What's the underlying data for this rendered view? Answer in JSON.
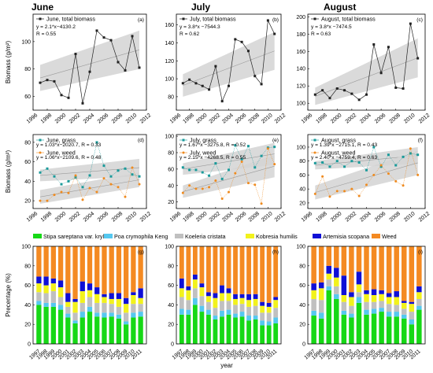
{
  "figure": {
    "column_titles": [
      "June",
      "July",
      "August"
    ],
    "xlabel": "year"
  },
  "colors": {
    "total": "#222222",
    "grass": "#1a9a9a",
    "weed": "#ef8a1e",
    "band": "#d3d3d3"
  },
  "chart_data": [
    {
      "type": "line",
      "row": 0,
      "col": 0,
      "panel_label": "(a)",
      "ylabel": "Biomass (g/m²)",
      "xlim": [
        1996,
        2012
      ],
      "ylim": [
        50,
        120
      ],
      "xticks": [
        1996,
        1998,
        2000,
        2002,
        2004,
        2006,
        2008,
        2010,
        2012
      ],
      "yticks": [
        60,
        80,
        100
      ],
      "x": [
        1997,
        1998,
        1999,
        2000,
        2001,
        2002,
        2003,
        2004,
        2005,
        2006,
        2007,
        2008,
        2009,
        2010,
        2011
      ],
      "series": [
        {
          "name": "June, total biomass",
          "kind": "total",
          "values": [
            70,
            72,
            71,
            61,
            59,
            91,
            55,
            78,
            108,
            103,
            101,
            85,
            79,
            104,
            81
          ]
        }
      ],
      "fit_band": {
        "x": [
          1997,
          2011
        ],
        "lower": [
          64,
          80
        ],
        "upper": [
          83,
          108
        ]
      },
      "annotations": [
        "y = 2.1*x−4130.2",
        "R = 0.55"
      ]
    },
    {
      "type": "line",
      "row": 0,
      "col": 1,
      "panel_label": "(b)",
      "ylabel": "",
      "xlim": [
        1996,
        2012
      ],
      "ylim": [
        65,
        172
      ],
      "xticks": [
        1996,
        1998,
        2000,
        2002,
        2004,
        2006,
        2008,
        2010,
        2012
      ],
      "yticks": [
        80,
        100,
        120,
        140,
        160
      ],
      "x": [
        1997,
        1998,
        1999,
        2000,
        2001,
        2002,
        2003,
        2004,
        2005,
        2006,
        2007,
        2008,
        2009,
        2010,
        2011
      ],
      "series": [
        {
          "name": "July, total biomass",
          "kind": "total",
          "values": [
            95,
            99,
            95,
            92,
            88,
            114,
            75,
            92,
            144,
            141,
            131,
            103,
            94,
            165,
            150
          ]
        }
      ],
      "fit_band": {
        "x": [
          1997,
          2011
        ],
        "lower": [
          80,
          110
        ],
        "upper": [
          105,
          152
        ]
      },
      "annotations": [
        "y = 3.8*x −7544.3",
        "R = 0.62"
      ]
    },
    {
      "type": "line",
      "row": 0,
      "col": 2,
      "panel_label": "(c)",
      "ylabel": "",
      "xlim": [
        1996,
        2012
      ],
      "ylim": [
        92,
        203
      ],
      "xticks": [
        1996,
        1998,
        2000,
        2002,
        2004,
        2006,
        2008,
        2010,
        2012
      ],
      "yticks": [
        100,
        120,
        140,
        160,
        180,
        200
      ],
      "x": [
        1997,
        1998,
        1999,
        2000,
        2001,
        2002,
        2003,
        2004,
        2005,
        2006,
        2007,
        2008,
        2009,
        2010,
        2011
      ],
      "series": [
        {
          "name": "August, total biomass",
          "kind": "total",
          "values": [
            110,
            115,
            106,
            117,
            115,
            111,
            104,
            110,
            168,
            135,
            165,
            118,
            117,
            192,
            152
          ]
        }
      ],
      "fit_band": {
        "x": [
          1997,
          2011
        ],
        "lower": [
          98,
          130
        ],
        "upper": [
          118,
          175
        ]
      },
      "annotations": [
        "y = 3.8*x −7474.5",
        "R = 0.63"
      ]
    },
    {
      "type": "line",
      "row": 1,
      "col": 0,
      "panel_label": "(d)",
      "ylabel": "Biomass (g/m²)",
      "xlim": [
        1996,
        2012
      ],
      "ylim": [
        12,
        88
      ],
      "xticks": [
        1996,
        1998,
        2000,
        2002,
        2004,
        2006,
        2008,
        2010,
        2012
      ],
      "yticks": [
        20,
        40,
        60,
        80
      ],
      "x": [
        1997,
        1998,
        1999,
        2000,
        2001,
        2002,
        2003,
        2004,
        2005,
        2006,
        2007,
        2008,
        2009,
        2010,
        2011
      ],
      "series": [
        {
          "name": "June, grass",
          "kind": "grass",
          "values": [
            49,
            53,
            45,
            37,
            40,
            44,
            34,
            46,
            80,
            56,
            45,
            51,
            53,
            47,
            45
          ]
        },
        {
          "name": "June, weed",
          "kind": "weed",
          "values": [
            20,
            20,
            26,
            29,
            28,
            46,
            21,
            33,
            29,
            43,
            37,
            34,
            24,
            54,
            37
          ]
        }
      ],
      "fit_bands": [
        {
          "x": [
            1997,
            2011
          ],
          "lower": [
            40,
            45
          ],
          "upper": [
            52,
            63
          ]
        },
        {
          "x": [
            1997,
            2011
          ],
          "lower": [
            17,
            34
          ],
          "upper": [
            31,
            49
          ]
        }
      ],
      "annotations": [
        "y = 1.03*x−2020.7, R = 0.33",
        "y = 1.06*x−2109.6, R = 0.48"
      ]
    },
    {
      "type": "line",
      "row": 1,
      "col": 1,
      "panel_label": "(e)",
      "ylabel": "",
      "xlim": [
        1996,
        2012
      ],
      "ylim": [
        12,
        102
      ],
      "xticks": [
        1996,
        1998,
        2000,
        2002,
        2004,
        2006,
        2008,
        2010,
        2012
      ],
      "yticks": [
        20,
        40,
        60,
        80,
        100
      ],
      "x": [
        1997,
        1998,
        1999,
        2000,
        2001,
        2002,
        2003,
        2004,
        2005,
        2006,
        2007,
        2008,
        2009,
        2010,
        2011
      ],
      "series": [
        {
          "name": "July, grass",
          "kind": "grass",
          "values": [
            62,
            59,
            59,
            56,
            52,
            67,
            48,
            59,
            89,
            72,
            88,
            62,
            76,
            86,
            87
          ]
        },
        {
          "name": "July, weed",
          "kind": "weed",
          "values": [
            31,
            40,
            36,
            36,
            38,
            46,
            24,
            32,
            55,
            69,
            43,
            41,
            18,
            85,
            66
          ]
        }
      ],
      "fit_bands": [
        {
          "x": [
            1997,
            2011
          ],
          "lower": [
            53,
            65
          ],
          "upper": [
            67,
            92
          ]
        },
        {
          "x": [
            1997,
            2011
          ],
          "lower": [
            25,
            50
          ],
          "upper": [
            40,
            77
          ]
        }
      ],
      "annotations": [
        "y = 1.67*x −3275.8, R = 0.52",
        "y = 2.15*x −4268.5, R = 0.55"
      ]
    },
    {
      "type": "line",
      "row": 1,
      "col": 2,
      "panel_label": "(f)",
      "ylabel": "",
      "xlim": [
        1996,
        2012
      ],
      "ylim": [
        12,
        118
      ],
      "xticks": [
        1996,
        1998,
        2000,
        2002,
        2004,
        2006,
        2008,
        2010,
        2012
      ],
      "yticks": [
        20,
        40,
        60,
        80,
        100
      ],
      "x": [
        1997,
        1998,
        1999,
        2000,
        2001,
        2002,
        2003,
        2004,
        2005,
        2006,
        2007,
        2008,
        2009,
        2010,
        2011
      ],
      "series": [
        {
          "name": "August, grass",
          "kind": "grass",
          "values": [
            77,
            78,
            72,
            80,
            72,
            80,
            78,
            67,
            100,
            72,
            89,
            74,
            86,
            91,
            89
          ]
        },
        {
          "name": "August, weed",
          "kind": "weed",
          "values": [
            33,
            58,
            29,
            37,
            37,
            40,
            30,
            46,
            60,
            74,
            62,
            51,
            45,
            98,
            60
          ]
        }
      ],
      "fit_bands": [
        {
          "x": [
            1997,
            2011
          ],
          "lower": [
            68,
            76
          ],
          "upper": [
            80,
            100
          ]
        },
        {
          "x": [
            1997,
            2011
          ],
          "lower": [
            25,
            60
          ],
          "upper": [
            45,
            95
          ]
        }
      ],
      "annotations": [
        "y = 1.39*x −2715.1, R = 0.43",
        "y = 2.40*x −4759.4, R = 0.63"
      ]
    },
    {
      "type": "bar",
      "stacked": true,
      "row": 2,
      "col": 0,
      "panel_label": "(g)",
      "ylabel": "Precentage (%)",
      "ylim": [
        0,
        100
      ],
      "yticks": [
        0,
        20,
        40,
        60,
        80,
        100
      ],
      "categories": [
        "1997",
        "1998",
        "1999",
        "2000",
        "2001",
        "2002",
        "2003",
        "2004",
        "2005",
        "2006",
        "2007",
        "2008",
        "2009",
        "2010",
        "2011"
      ],
      "series": [
        {
          "name": "Stipa sareptana var. krylovii",
          "color": "#16d816",
          "values": [
            40,
            38,
            38,
            35,
            27,
            21,
            27,
            33,
            28,
            27,
            28,
            26,
            20,
            27,
            28
          ]
        },
        {
          "name": "Poa crymophila Keng",
          "color": "#55c8f0",
          "values": [
            4,
            4,
            4,
            5,
            4,
            3,
            6,
            5,
            4,
            5,
            4,
            4,
            3,
            5,
            5
          ]
        },
        {
          "name": "Koeleria cristata",
          "color": "#c0c0c0",
          "values": [
            9,
            10,
            12,
            8,
            7,
            8,
            9,
            10,
            10,
            10,
            9,
            8,
            9,
            9,
            8
          ]
        },
        {
          "name": "Kobresia humilis",
          "color": "#f2f21c",
          "values": [
            9,
            8,
            8,
            10,
            5,
            11,
            12,
            7,
            9,
            6,
            5,
            8,
            9,
            9,
            6
          ]
        },
        {
          "name": "Artemisia scopana",
          "color": "#0f0fd6",
          "values": [
            7,
            9,
            5,
            7,
            9,
            3,
            10,
            7,
            7,
            3,
            6,
            6,
            6,
            3,
            10
          ]
        },
        {
          "name": "Weed",
          "color": "#f48a22",
          "values": [
            31,
            31,
            33,
            35,
            48,
            54,
            36,
            38,
            42,
            49,
            48,
            48,
            53,
            47,
            43
          ]
        }
      ]
    },
    {
      "type": "bar",
      "stacked": true,
      "row": 2,
      "col": 1,
      "panel_label": "(h)",
      "ylabel": "",
      "ylim": [
        0,
        100
      ],
      "yticks": [
        0,
        20,
        40,
        60,
        80,
        100
      ],
      "categories": [
        "1997",
        "1998",
        "1999",
        "2000",
        "2001",
        "2002",
        "2003",
        "2004",
        "2005",
        "2006",
        "2007",
        "2008",
        "2009",
        "2010",
        "2011"
      ],
      "series": [
        {
          "name": "Stipa sareptana var. krylovii",
          "color": "#16d816",
          "values": [
            30,
            30,
            40,
            33,
            30,
            25,
            28,
            30,
            27,
            28,
            24,
            25,
            19,
            19,
            21
          ]
        },
        {
          "name": "Poa crymophila Keng",
          "color": "#55c8f0",
          "values": [
            6,
            5,
            7,
            6,
            5,
            4,
            6,
            5,
            4,
            5,
            5,
            4,
            5,
            4,
            6
          ]
        },
        {
          "name": "Koeleria cristata",
          "color": "#c0c0c0",
          "values": [
            12,
            10,
            10,
            10,
            8,
            8,
            10,
            9,
            9,
            8,
            9,
            10,
            8,
            9,
            10
          ]
        },
        {
          "name": "Kobresia humilis",
          "color": "#f2f21c",
          "values": [
            9,
            10,
            9,
            9,
            6,
            10,
            8,
            8,
            6,
            6,
            7,
            7,
            7,
            6,
            8
          ]
        },
        {
          "name": "Artemisia scopana",
          "color": "#0f0fd6",
          "values": [
            10,
            4,
            5,
            4,
            4,
            5,
            8,
            5,
            5,
            4,
            6,
            5,
            4,
            4,
            3
          ]
        },
        {
          "name": "Weed",
          "color": "#f48a22",
          "values": [
            33,
            41,
            29,
            38,
            47,
            48,
            40,
            43,
            49,
            49,
            49,
            49,
            57,
            58,
            52
          ]
        }
      ]
    },
    {
      "type": "bar",
      "stacked": true,
      "row": 2,
      "col": 2,
      "panel_label": "(i)",
      "ylabel": "",
      "ylim": [
        0,
        100
      ],
      "yticks": [
        0,
        20,
        40,
        60,
        80,
        100
      ],
      "categories": [
        "1997",
        "1998",
        "1999",
        "2000",
        "2001",
        "2002",
        "2003",
        "2004",
        "2005",
        "2006",
        "2007",
        "2008",
        "2009",
        "2010",
        "2011"
      ],
      "series": [
        {
          "name": "Stipa sareptana var. krylovii",
          "color": "#16d816",
          "values": [
            29,
            26,
            55,
            46,
            30,
            27,
            42,
            30,
            31,
            33,
            28,
            28,
            26,
            20,
            35
          ]
        },
        {
          "name": "Poa crymophila Keng",
          "color": "#55c8f0",
          "values": [
            5,
            6,
            4,
            5,
            4,
            4,
            6,
            5,
            5,
            4,
            5,
            5,
            4,
            5,
            4
          ]
        },
        {
          "name": "Koeleria cristata",
          "color": "#c0c0c0",
          "values": [
            12,
            13,
            7,
            8,
            9,
            8,
            5,
            8,
            7,
            7,
            8,
            7,
            6,
            8,
            7
          ]
        },
        {
          "name": "Kobresia humilis",
          "color": "#f2f21c",
          "values": [
            9,
            12,
            6,
            9,
            7,
            9,
            8,
            8,
            7,
            7,
            7,
            8,
            6,
            8,
            7
          ]
        },
        {
          "name": "Artemisia scopana",
          "color": "#0f0fd6",
          "values": [
            7,
            6,
            8,
            10,
            20,
            5,
            13,
            4,
            6,
            4,
            4,
            6,
            2,
            2,
            6
          ]
        },
        {
          "name": "Weed",
          "color": "#f48a22",
          "values": [
            38,
            37,
            20,
            22,
            30,
            47,
            26,
            45,
            44,
            45,
            48,
            46,
            56,
            57,
            41
          ]
        }
      ]
    }
  ]
}
